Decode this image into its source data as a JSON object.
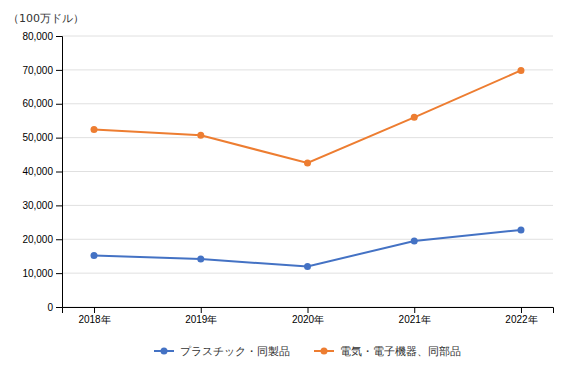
{
  "chart_data": {
    "type": "line",
    "ylabel": "（100万ドル）",
    "categories": [
      "2018年",
      "2019年",
      "2020年",
      "2021年",
      "2022年"
    ],
    "series": [
      {
        "name": "プラスチック・同製品",
        "color": "#4472C4",
        "values": [
          15202,
          14140,
          11962,
          19500,
          22734
        ]
      },
      {
        "name": "電気・電子機器、同部品",
        "color": "#ED7D31",
        "values": [
          52411,
          50700,
          42500,
          56000,
          69835
        ]
      }
    ],
    "ylim": [
      0,
      80000
    ],
    "yticks": [
      0,
      {
        "value": 10000,
        "label": "10,000"
      },
      {
        "value": 20000,
        "label": "20,000"
      },
      {
        "value": 30000,
        "label": "30,000"
      },
      {
        "value": 40000,
        "label": "40,000"
      },
      {
        "value": 50000,
        "label": "50,000"
      },
      {
        "value": 60000,
        "label": "60,000"
      },
      {
        "value": 70000,
        "label": "70,000"
      },
      {
        "value": 80000,
        "label": "80,000"
      }
    ],
    "grid": true,
    "marker": "circle",
    "legend": "bottom"
  }
}
